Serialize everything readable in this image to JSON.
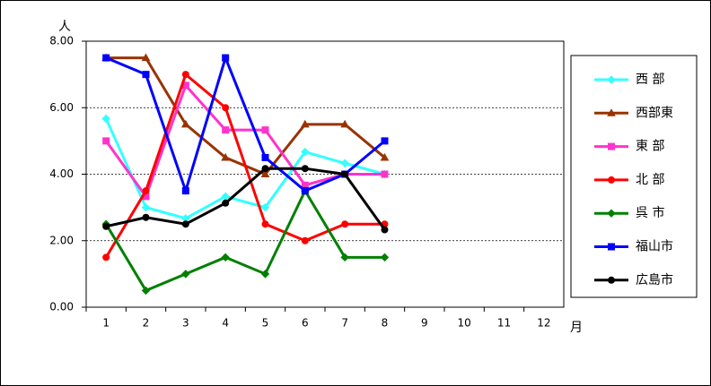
{
  "chart_data": {
    "type": "line",
    "y_unit": "人",
    "x_unit": "月",
    "categories": [
      "1",
      "2",
      "3",
      "4",
      "5",
      "6",
      "7",
      "8",
      "9",
      "10",
      "11",
      "12"
    ],
    "ylim": [
      0,
      8
    ],
    "yticks": [
      {
        "value": 0,
        "label": "0.00"
      },
      {
        "value": 2,
        "label": "2.00"
      },
      {
        "value": 4,
        "label": "4.00"
      },
      {
        "value": 6,
        "label": "6.00"
      },
      {
        "value": 8,
        "label": "8.00"
      }
    ],
    "grid": true,
    "legend": "right",
    "series": [
      {
        "name": "西 部",
        "color": "#33ffff",
        "marker": "diamond",
        "values": [
          5.67,
          3.0,
          2.67,
          3.33,
          3.0,
          4.67,
          4.33,
          4.0,
          null,
          null,
          null,
          null
        ]
      },
      {
        "name": "西部東",
        "color": "#993300",
        "marker": "triangle",
        "values": [
          7.5,
          7.5,
          5.5,
          4.5,
          4.0,
          5.5,
          5.5,
          4.5,
          null,
          null,
          null,
          null
        ]
      },
      {
        "name": "東 部",
        "color": "#ff33cc",
        "marker": "square",
        "values": [
          5.0,
          3.33,
          6.67,
          5.33,
          5.33,
          3.67,
          4.0,
          4.0,
          null,
          null,
          null,
          null
        ]
      },
      {
        "name": "北 部",
        "color": "#ff0000",
        "marker": "circle",
        "values": [
          1.5,
          3.5,
          7.0,
          6.0,
          2.5,
          2.0,
          2.5,
          2.5,
          null,
          null,
          null,
          null
        ]
      },
      {
        "name": "呉 市",
        "color": "#008000",
        "marker": "diamond",
        "values": [
          2.5,
          0.5,
          1.0,
          1.5,
          1.0,
          3.5,
          1.5,
          1.5,
          null,
          null,
          null,
          null
        ]
      },
      {
        "name": "福山市",
        "color": "#0000ff",
        "marker": "square",
        "values": [
          7.5,
          7.0,
          3.5,
          7.5,
          4.5,
          3.5,
          4.0,
          5.0,
          null,
          null,
          null,
          null
        ]
      },
      {
        "name": "広島市",
        "color": "#000000",
        "marker": "circle",
        "values": [
          2.43,
          2.7,
          2.5,
          3.13,
          4.17,
          4.17,
          4.0,
          2.33,
          null,
          null,
          null,
          null
        ]
      }
    ]
  }
}
